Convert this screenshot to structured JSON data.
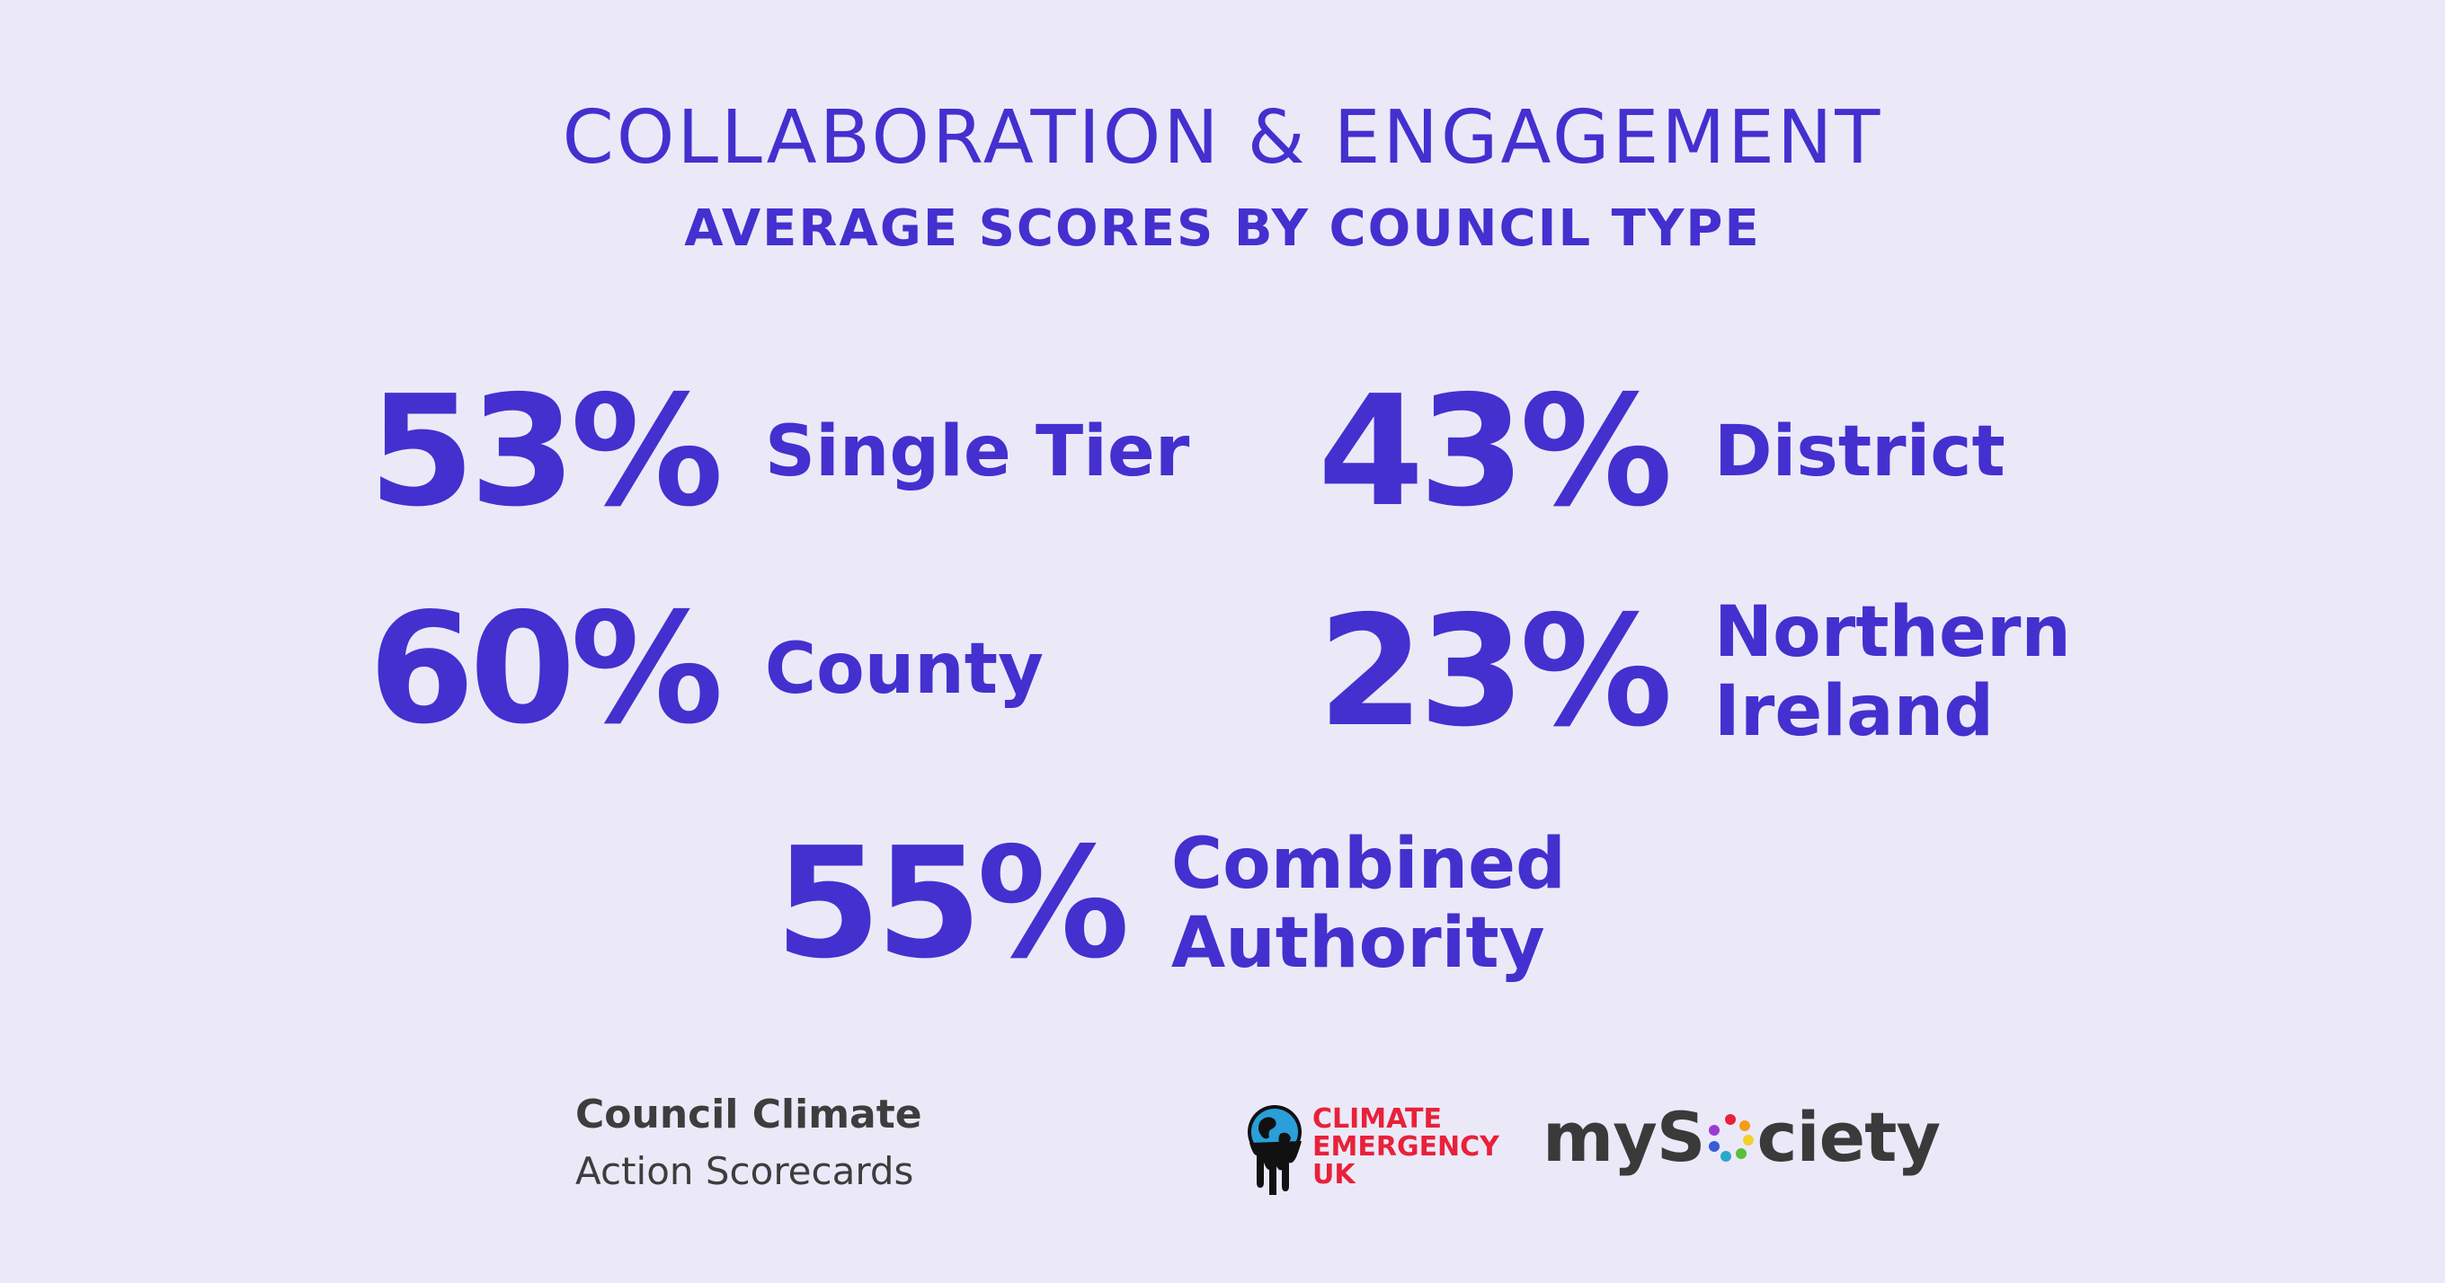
{
  "header": {
    "title": "COLLABORATION & ENGAGEMENT",
    "subtitle": "AVERAGE SCORES BY COUNCIL TYPE"
  },
  "stats": [
    {
      "value": "53%",
      "label_lines": [
        "Single Tier"
      ]
    },
    {
      "value": "43%",
      "label_lines": [
        "District"
      ]
    },
    {
      "value": "60%",
      "label_lines": [
        "County"
      ]
    },
    {
      "value": "23%",
      "label_lines": [
        "Northern",
        "Ireland"
      ]
    },
    {
      "value": "55%",
      "label_lines": [
        "Combined",
        "Authority"
      ]
    }
  ],
  "footer": {
    "brand_line1": "Council Climate",
    "brand_line2": "Action Scorecards",
    "ceuk_lines": [
      "CLIMATE",
      "EMERGENCY",
      "UK"
    ],
    "mysociety_before": "myS",
    "mysociety_after": "ciety",
    "ceuk_icon": "dripping-globe-icon",
    "mysociety_icon": "colored-dots-circle-icon"
  },
  "colors": {
    "background": "#ebe9f8",
    "accent": "#4330cf",
    "brand_text": "#3d3d3d",
    "ceuk_red": "#e8213a"
  }
}
